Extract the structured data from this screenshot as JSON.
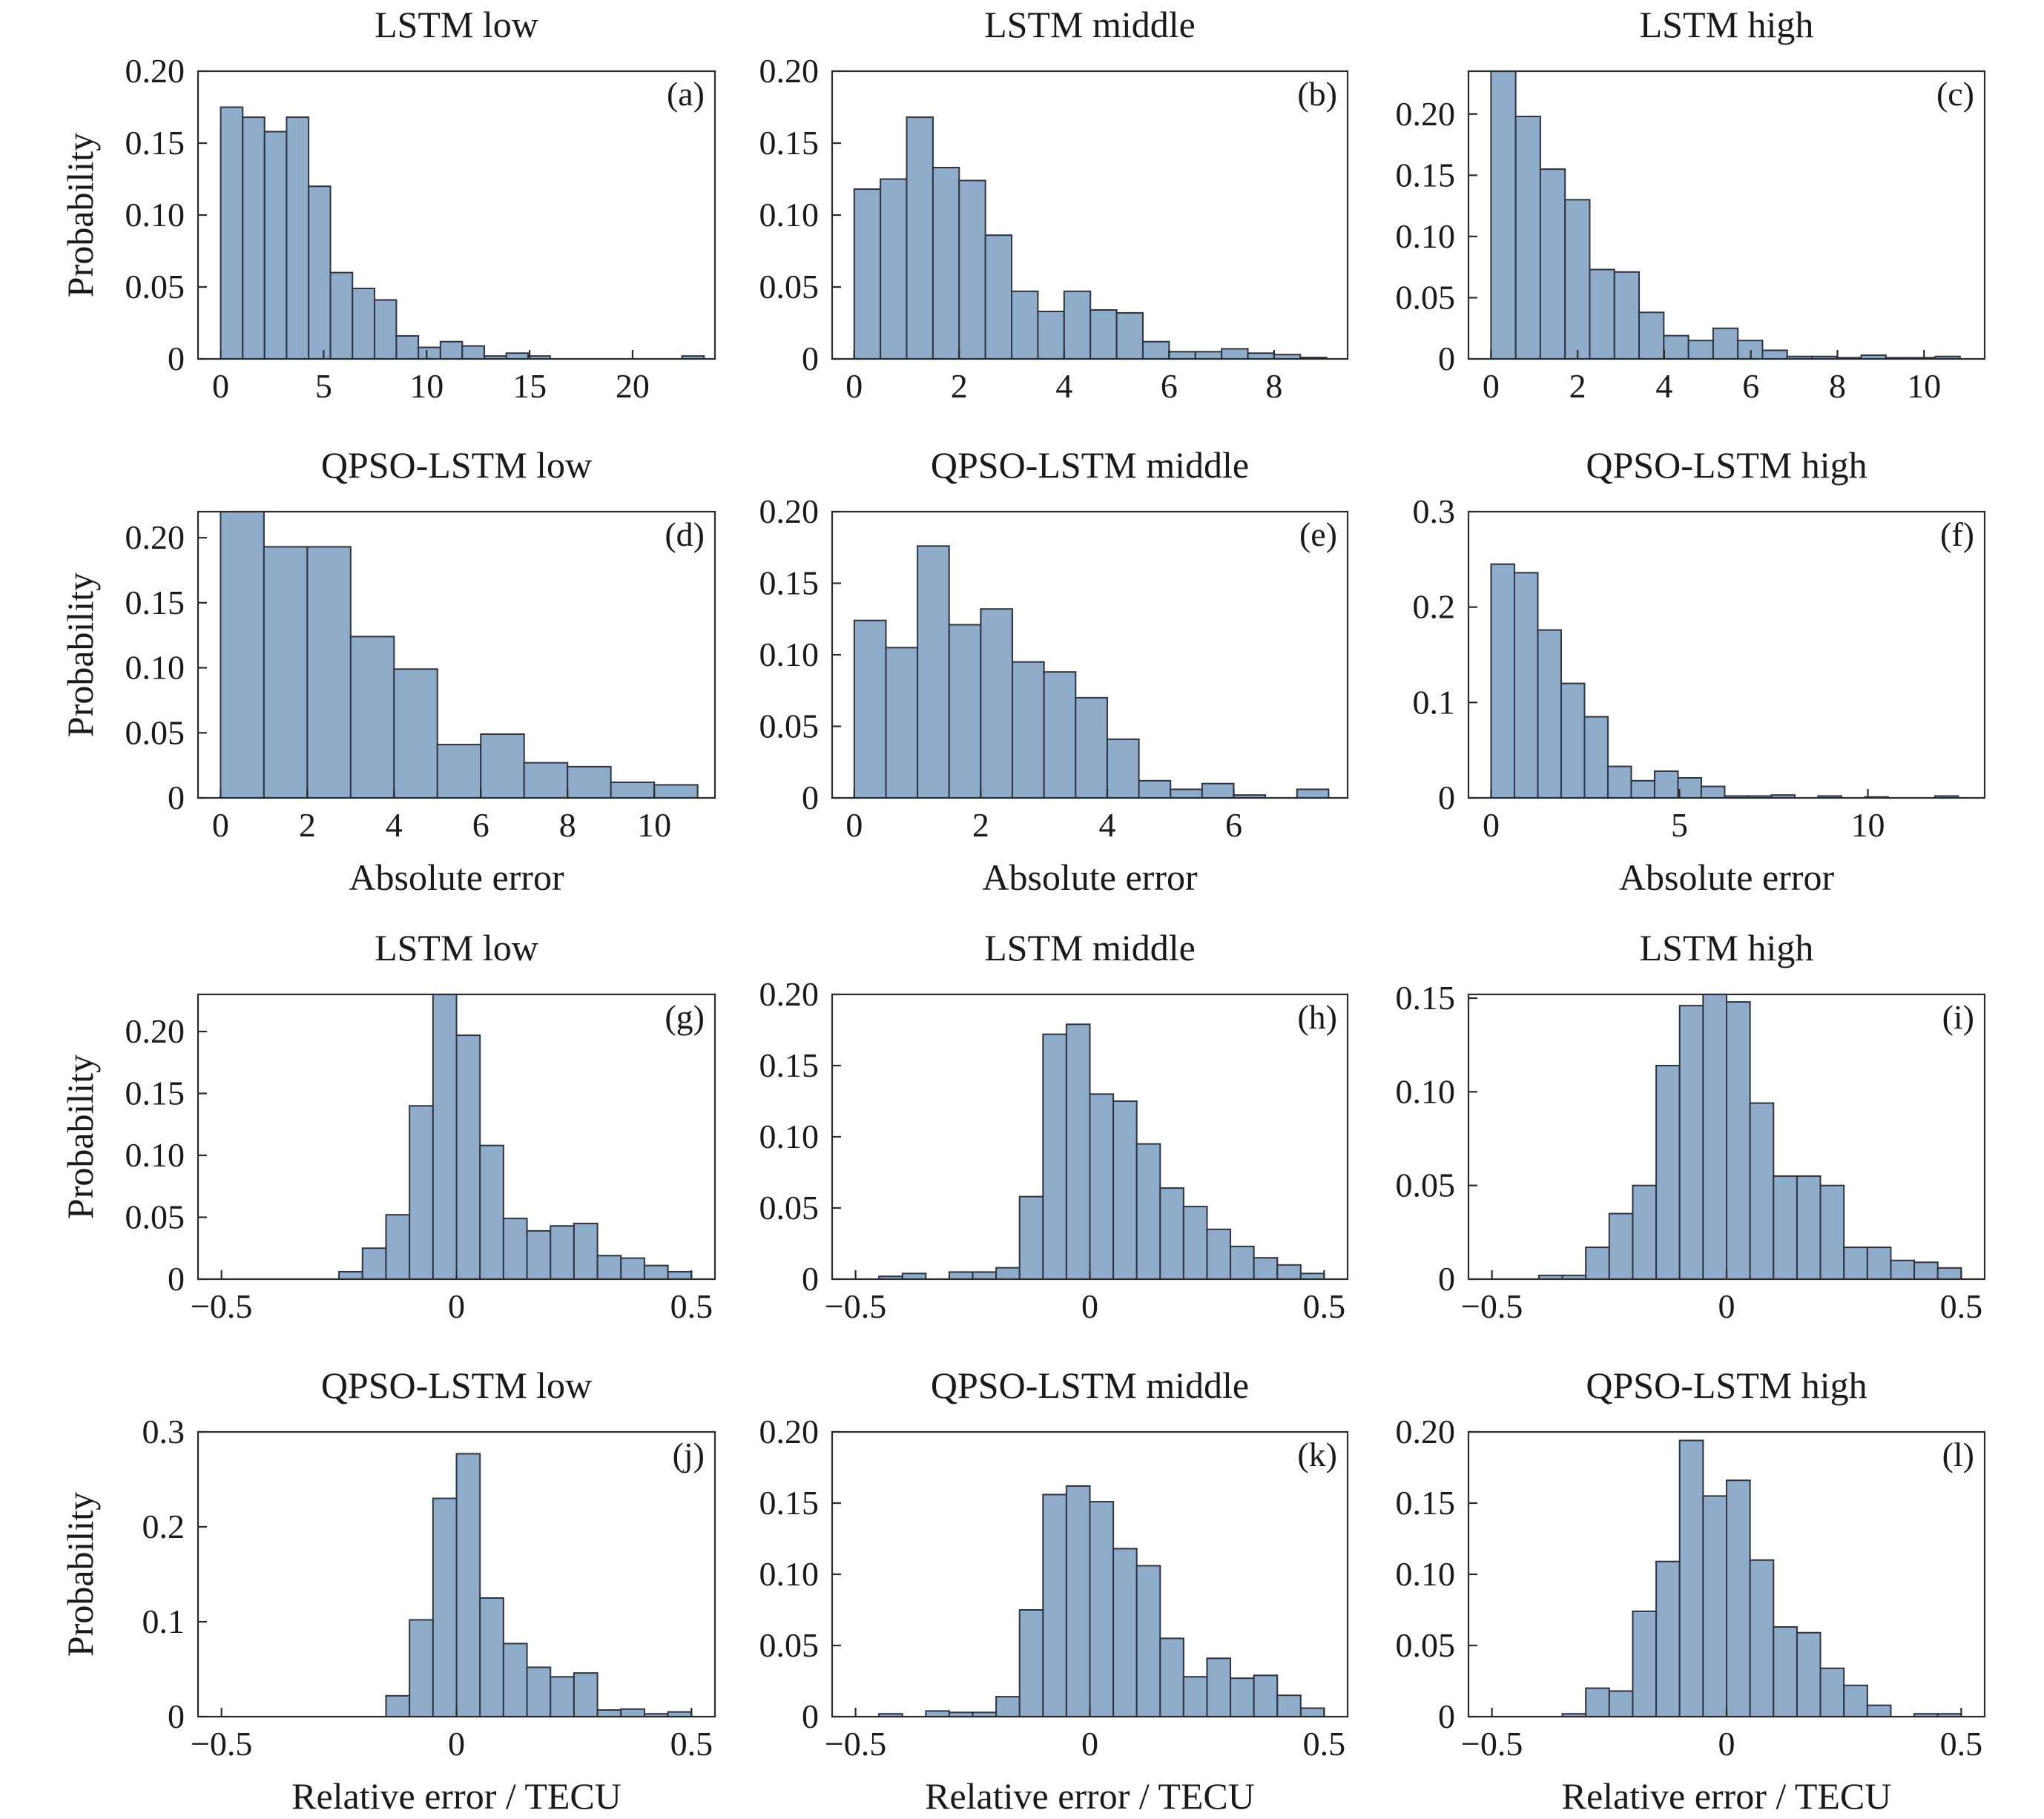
{
  "figure": {
    "colors": {
      "bar_fill": "#8facca",
      "bar_edge": "#2f3340",
      "axis": "#2b2b2b",
      "text": "#1a1a1a"
    },
    "ylabel": "Probability",
    "xlabel_absolute": "Absolute error",
    "xlabel_relative": "Relative error / TECU"
  },
  "chart_data": [
    {
      "panel": "(a)",
      "type": "bar",
      "title": "LSTM low",
      "xlabel": "",
      "ylabel": "Probability",
      "xlim": [
        -1.1,
        24
      ],
      "ylim": [
        0,
        0.2
      ],
      "xticks": [
        0,
        5,
        10,
        15,
        20
      ],
      "xtick_labels": [
        "0",
        "5",
        "10",
        "15",
        "20"
      ],
      "yticks": [
        0,
        0.05,
        0.1,
        0.15,
        0.2
      ],
      "ytick_labels": [
        "0",
        "0.05",
        "0.10",
        "0.15",
        "0.20"
      ],
      "bin_edges": [
        0,
        1.07,
        2.13,
        3.2,
        4.27,
        5.33,
        6.4,
        7.47,
        8.53,
        9.6,
        10.67,
        11.73,
        12.8,
        13.87,
        14.93,
        16,
        17.07,
        18.13,
        19.2,
        20.27,
        21.33,
        22.4,
        23.47
      ],
      "values": [
        0.175,
        0.168,
        0.158,
        0.168,
        0.12,
        0.06,
        0.049,
        0.041,
        0.016,
        0.008,
        0.012,
        0.009,
        0.002,
        0.004,
        0.002,
        0,
        0,
        0,
        0,
        0,
        0,
        0.002
      ]
    },
    {
      "panel": "(b)",
      "type": "bar",
      "title": "LSTM middle",
      "xlabel": "",
      "ylabel": "",
      "xlim": [
        -0.42,
        9.4
      ],
      "ylim": [
        0,
        0.2
      ],
      "xticks": [
        0,
        2,
        4,
        6,
        8
      ],
      "xtick_labels": [
        "0",
        "2",
        "4",
        "6",
        "8"
      ],
      "yticks": [
        0,
        0.05,
        0.1,
        0.15,
        0.2
      ],
      "ytick_labels": [
        "0",
        "0.05",
        "0.10",
        "0.15",
        "0.20"
      ],
      "bin_edges": [
        0,
        0.5,
        1,
        1.5,
        2,
        2.5,
        3,
        3.5,
        4,
        4.5,
        5,
        5.5,
        6,
        6.5,
        7,
        7.5,
        8,
        8.5,
        9
      ],
      "values": [
        0.118,
        0.125,
        0.168,
        0.133,
        0.124,
        0.086,
        0.047,
        0.033,
        0.047,
        0.034,
        0.032,
        0.012,
        0.005,
        0.005,
        0.007,
        0.004,
        0.003,
        0.001
      ]
    },
    {
      "panel": "(c)",
      "type": "bar",
      "title": "LSTM high",
      "xlabel": "",
      "ylabel": "",
      "xlim": [
        -0.52,
        11.4
      ],
      "ylim": [
        0,
        0.235
      ],
      "xticks": [
        0,
        2,
        4,
        6,
        8,
        10
      ],
      "xtick_labels": [
        "0",
        "2",
        "4",
        "6",
        "8",
        "10"
      ],
      "yticks": [
        0,
        0.05,
        0.1,
        0.15,
        0.2
      ],
      "ytick_labels": [
        "0",
        "0.05",
        "0.10",
        "0.15",
        "0.20"
      ],
      "bin_edges": [
        0,
        0.57,
        1.14,
        1.71,
        2.28,
        2.85,
        3.42,
        3.99,
        4.56,
        5.13,
        5.7,
        6.27,
        6.84,
        7.41,
        7.98,
        8.55,
        9.12,
        9.69,
        10.26,
        10.83
      ],
      "values": [
        0.235,
        0.198,
        0.155,
        0.13,
        0.073,
        0.071,
        0.038,
        0.019,
        0.015,
        0.025,
        0.015,
        0.007,
        0.002,
        0.002,
        0.001,
        0.003,
        0.001,
        0.001,
        0.002
      ]
    },
    {
      "panel": "(d)",
      "type": "bar",
      "title": "QPSO-LSTM low",
      "xlabel": "Absolute error",
      "ylabel": "Probability",
      "xlim": [
        -0.52,
        11.4
      ],
      "ylim": [
        0,
        0.22
      ],
      "xticks": [
        0,
        2,
        4,
        6,
        8,
        10
      ],
      "xtick_labels": [
        "0",
        "2",
        "4",
        "6",
        "8",
        "10"
      ],
      "yticks": [
        0,
        0.05,
        0.1,
        0.15,
        0.2
      ],
      "ytick_labels": [
        "0",
        "0.05",
        "0.10",
        "0.15",
        "0.20"
      ],
      "bin_edges": [
        0,
        1,
        2,
        3,
        4,
        5,
        6,
        7,
        8,
        9,
        10,
        11
      ],
      "values": [
        0.22,
        0.193,
        0.193,
        0.124,
        0.099,
        0.041,
        0.049,
        0.027,
        0.024,
        0.012,
        0.01
      ]
    },
    {
      "panel": "(e)",
      "type": "bar",
      "title": "QPSO-LSTM middle",
      "xlabel": "Absolute error",
      "ylabel": "",
      "xlim": [
        -0.35,
        7.8
      ],
      "ylim": [
        0,
        0.2
      ],
      "xticks": [
        0,
        2,
        4,
        6
      ],
      "xtick_labels": [
        "0",
        "2",
        "4",
        "6"
      ],
      "yticks": [
        0,
        0.05,
        0.1,
        0.15,
        0.2
      ],
      "ytick_labels": [
        "0",
        "0.05",
        "0.10",
        "0.15",
        "0.20"
      ],
      "bin_edges": [
        0,
        0.5,
        1,
        1.5,
        2,
        2.5,
        3,
        3.5,
        4,
        4.5,
        5,
        5.5,
        6,
        6.5,
        7,
        7.5
      ],
      "values": [
        0.124,
        0.105,
        0.176,
        0.121,
        0.132,
        0.095,
        0.088,
        0.07,
        0.041,
        0.012,
        0.006,
        0.01,
        0.002,
        0,
        0.006
      ]
    },
    {
      "panel": "(f)",
      "type": "bar",
      "title": "QPSO-LSTM high",
      "xlabel": "Absolute error",
      "ylabel": "",
      "xlim": [
        -0.6,
        13.1
      ],
      "ylim": [
        0,
        0.3
      ],
      "xticks": [
        0,
        5,
        10
      ],
      "xtick_labels": [
        "0",
        "5",
        "10"
      ],
      "yticks": [
        0,
        0.1,
        0.2,
        0.3
      ],
      "ytick_labels": [
        "0",
        "0.1",
        "0.2",
        "0.3"
      ],
      "bin_edges": [
        0,
        0.62,
        1.24,
        1.86,
        2.48,
        3.1,
        3.72,
        4.34,
        4.96,
        5.58,
        6.2,
        6.82,
        7.44,
        8.06,
        8.68,
        9.3,
        9.92,
        10.54,
        11.16,
        11.78,
        12.4
      ],
      "values": [
        0.245,
        0.236,
        0.176,
        0.12,
        0.085,
        0.033,
        0.018,
        0.028,
        0.021,
        0.012,
        0.002,
        0.002,
        0.003,
        0,
        0.002,
        0,
        0.001,
        0,
        0,
        0.002
      ]
    },
    {
      "panel": "(g)",
      "type": "bar",
      "title": "LSTM low",
      "xlabel": "",
      "ylabel": "Probability",
      "xlim": [
        -0.55,
        0.55
      ],
      "ylim": [
        0,
        0.23
      ],
      "xticks": [
        -0.5,
        0,
        0.5
      ],
      "xtick_labels": [
        "−0.5",
        "0",
        "0.5"
      ],
      "yticks": [
        0,
        0.05,
        0.1,
        0.15,
        0.2
      ],
      "ytick_labels": [
        "0",
        "0.05",
        "0.10",
        "0.15",
        "0.20"
      ],
      "bin_edges": [
        -0.5,
        -0.45,
        -0.4,
        -0.35,
        -0.3,
        -0.25,
        -0.2,
        -0.15,
        -0.1,
        -0.05,
        0,
        0.05,
        0.1,
        0.15,
        0.2,
        0.25,
        0.3,
        0.35,
        0.4,
        0.45,
        0.5
      ],
      "values": [
        0,
        0,
        0,
        0,
        0,
        0.006,
        0.025,
        0.052,
        0.14,
        0.23,
        0.197,
        0.108,
        0.049,
        0.039,
        0.043,
        0.045,
        0.019,
        0.017,
        0.011,
        0.006
      ]
    },
    {
      "panel": "(h)",
      "type": "bar",
      "title": "LSTM middle",
      "xlabel": "",
      "ylabel": "",
      "xlim": [
        -0.55,
        0.55
      ],
      "ylim": [
        0,
        0.2
      ],
      "xticks": [
        -0.5,
        0,
        0.5
      ],
      "xtick_labels": [
        "−0.5",
        "0",
        "0.5"
      ],
      "yticks": [
        0,
        0.05,
        0.1,
        0.15,
        0.2
      ],
      "ytick_labels": [
        "0",
        "0.05",
        "0.10",
        "0.15",
        "0.20"
      ],
      "bin_edges": [
        -0.5,
        -0.45,
        -0.4,
        -0.35,
        -0.3,
        -0.25,
        -0.2,
        -0.15,
        -0.1,
        -0.05,
        0,
        0.05,
        0.1,
        0.15,
        0.2,
        0.25,
        0.3,
        0.35,
        0.4,
        0.45,
        0.5
      ],
      "values": [
        0,
        0.002,
        0.004,
        0,
        0.005,
        0.005,
        0.008,
        0.058,
        0.172,
        0.179,
        0.13,
        0.125,
        0.095,
        0.064,
        0.051,
        0.035,
        0.023,
        0.015,
        0.01,
        0.004
      ]
    },
    {
      "panel": "(i)",
      "type": "bar",
      "title": "LSTM high",
      "xlabel": "",
      "ylabel": "",
      "xlim": [
        -0.55,
        0.55
      ],
      "ylim": [
        0,
        0.152
      ],
      "xticks": [
        -0.5,
        0,
        0.5
      ],
      "xtick_labels": [
        "−0.5",
        "0",
        "0.5"
      ],
      "yticks": [
        0,
        0.05,
        0.1,
        0.15
      ],
      "ytick_labels": [
        "0",
        "0.05",
        "0.10",
        "0.15"
      ],
      "bin_edges": [
        -0.5,
        -0.45,
        -0.4,
        -0.35,
        -0.3,
        -0.25,
        -0.2,
        -0.15,
        -0.1,
        -0.05,
        0,
        0.05,
        0.1,
        0.15,
        0.2,
        0.25,
        0.3,
        0.35,
        0.4,
        0.45,
        0.5
      ],
      "values": [
        0,
        0,
        0.002,
        0.002,
        0.017,
        0.035,
        0.05,
        0.114,
        0.146,
        0.152,
        0.148,
        0.094,
        0.055,
        0.055,
        0.05,
        0.017,
        0.017,
        0.01,
        0.009,
        0.006
      ]
    },
    {
      "panel": "(j)",
      "type": "bar",
      "title": "QPSO-LSTM low",
      "xlabel": "Relative error / TECU",
      "ylabel": "Probability",
      "xlim": [
        -0.55,
        0.55
      ],
      "ylim": [
        0,
        0.3
      ],
      "xticks": [
        -0.5,
        0,
        0.5
      ],
      "xtick_labels": [
        "−0.5",
        "0",
        "0.5"
      ],
      "yticks": [
        0,
        0.1,
        0.2,
        0.3
      ],
      "ytick_labels": [
        "0",
        "0.1",
        "0.2",
        "0.3"
      ],
      "bin_edges": [
        -0.5,
        -0.45,
        -0.4,
        -0.35,
        -0.3,
        -0.25,
        -0.2,
        -0.15,
        -0.1,
        -0.05,
        0,
        0.05,
        0.1,
        0.15,
        0.2,
        0.25,
        0.3,
        0.35,
        0.4,
        0.45,
        0.5
      ],
      "values": [
        0,
        0,
        0,
        0,
        0,
        0,
        0,
        0.022,
        0.102,
        0.23,
        0.277,
        0.125,
        0.077,
        0.052,
        0.042,
        0.046,
        0.007,
        0.008,
        0.003,
        0.005
      ]
    },
    {
      "panel": "(k)",
      "type": "bar",
      "title": "QPSO-LSTM middle",
      "xlabel": "Relative error / TECU",
      "ylabel": "",
      "xlim": [
        -0.55,
        0.55
      ],
      "ylim": [
        0,
        0.2
      ],
      "xticks": [
        -0.5,
        0,
        0.5
      ],
      "xtick_labels": [
        "−0.5",
        "0",
        "0.5"
      ],
      "yticks": [
        0,
        0.05,
        0.1,
        0.15,
        0.2
      ],
      "ytick_labels": [
        "0",
        "0.05",
        "0.10",
        "0.15",
        "0.20"
      ],
      "bin_edges": [
        -0.5,
        -0.45,
        -0.4,
        -0.35,
        -0.3,
        -0.25,
        -0.2,
        -0.15,
        -0.1,
        -0.05,
        0,
        0.05,
        0.1,
        0.15,
        0.2,
        0.25,
        0.3,
        0.35,
        0.4,
        0.45,
        0.5
      ],
      "values": [
        0,
        0.002,
        0,
        0.004,
        0.003,
        0.003,
        0.014,
        0.075,
        0.156,
        0.162,
        0.151,
        0.118,
        0.106,
        0.055,
        0.028,
        0.041,
        0.027,
        0.029,
        0.015,
        0.006
      ]
    },
    {
      "panel": "(l)",
      "type": "bar",
      "title": "QPSO-LSTM high",
      "xlabel": "Relative error / TECU",
      "ylabel": "",
      "xlim": [
        -0.55,
        0.55
      ],
      "ylim": [
        0,
        0.2
      ],
      "xticks": [
        -0.5,
        0,
        0.5
      ],
      "xtick_labels": [
        "−0.5",
        "0",
        "0.5"
      ],
      "yticks": [
        0,
        0.05,
        0.1,
        0.15,
        0.2
      ],
      "ytick_labels": [
        "0",
        "0.05",
        "0.10",
        "0.15",
        "0.20"
      ],
      "bin_edges": [
        -0.5,
        -0.45,
        -0.4,
        -0.35,
        -0.3,
        -0.25,
        -0.2,
        -0.15,
        -0.1,
        -0.05,
        0,
        0.05,
        0.1,
        0.15,
        0.2,
        0.25,
        0.3,
        0.35,
        0.4,
        0.45,
        0.5
      ],
      "values": [
        0,
        0,
        0,
        0.002,
        0.02,
        0.018,
        0.074,
        0.109,
        0.194,
        0.155,
        0.166,
        0.11,
        0.063,
        0.059,
        0.034,
        0.022,
        0.008,
        0,
        0.002,
        0.002
      ]
    }
  ]
}
